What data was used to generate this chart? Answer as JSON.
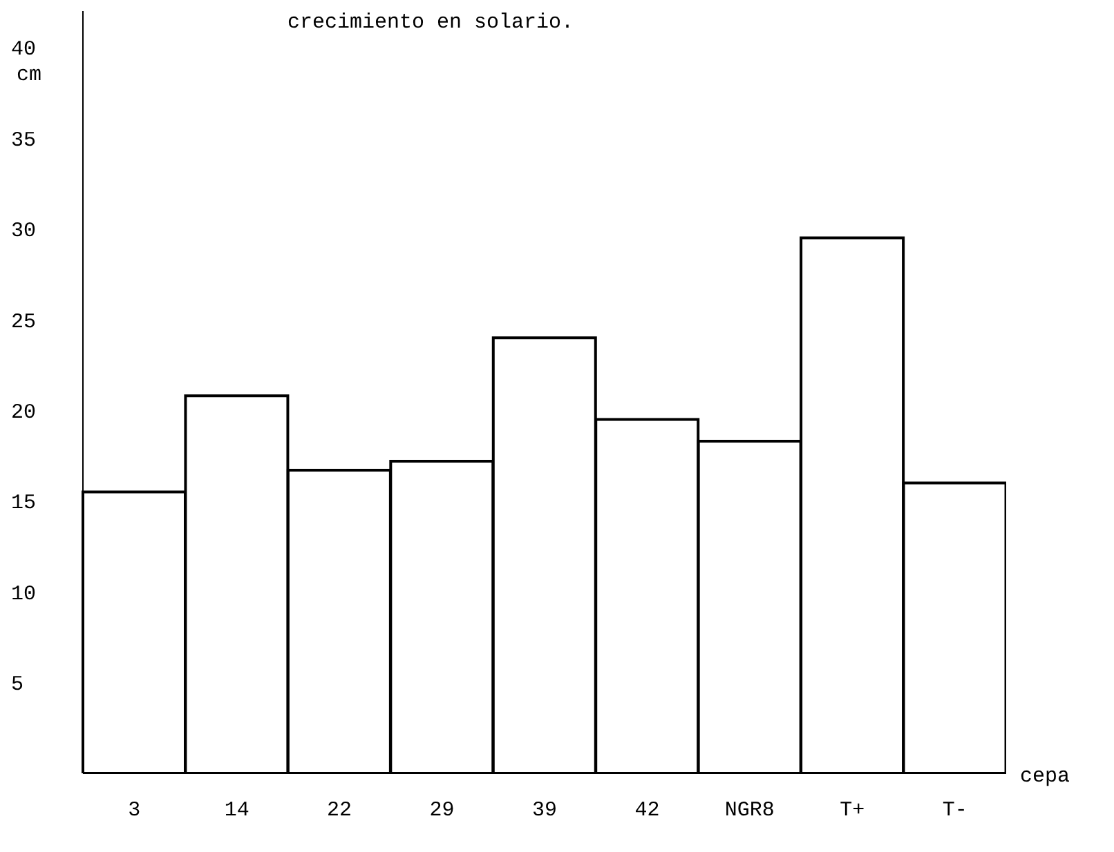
{
  "chart_data": {
    "type": "bar",
    "title": "crecimiento en solario.",
    "ylabel": "cm",
    "xlabel": "cepa",
    "categories": [
      "3",
      "14",
      "22",
      "29",
      "39",
      "42",
      "NGR8",
      "T+",
      "T-"
    ],
    "values": [
      15.5,
      20.8,
      16.7,
      17.2,
      24,
      19.5,
      18.3,
      29.5,
      16
    ],
    "color": "#ffffff",
    "ylim": [
      0,
      42
    ],
    "yticks": [
      5,
      10,
      15,
      20,
      25,
      30,
      35,
      40
    ],
    "grid": false,
    "legend": false
  }
}
